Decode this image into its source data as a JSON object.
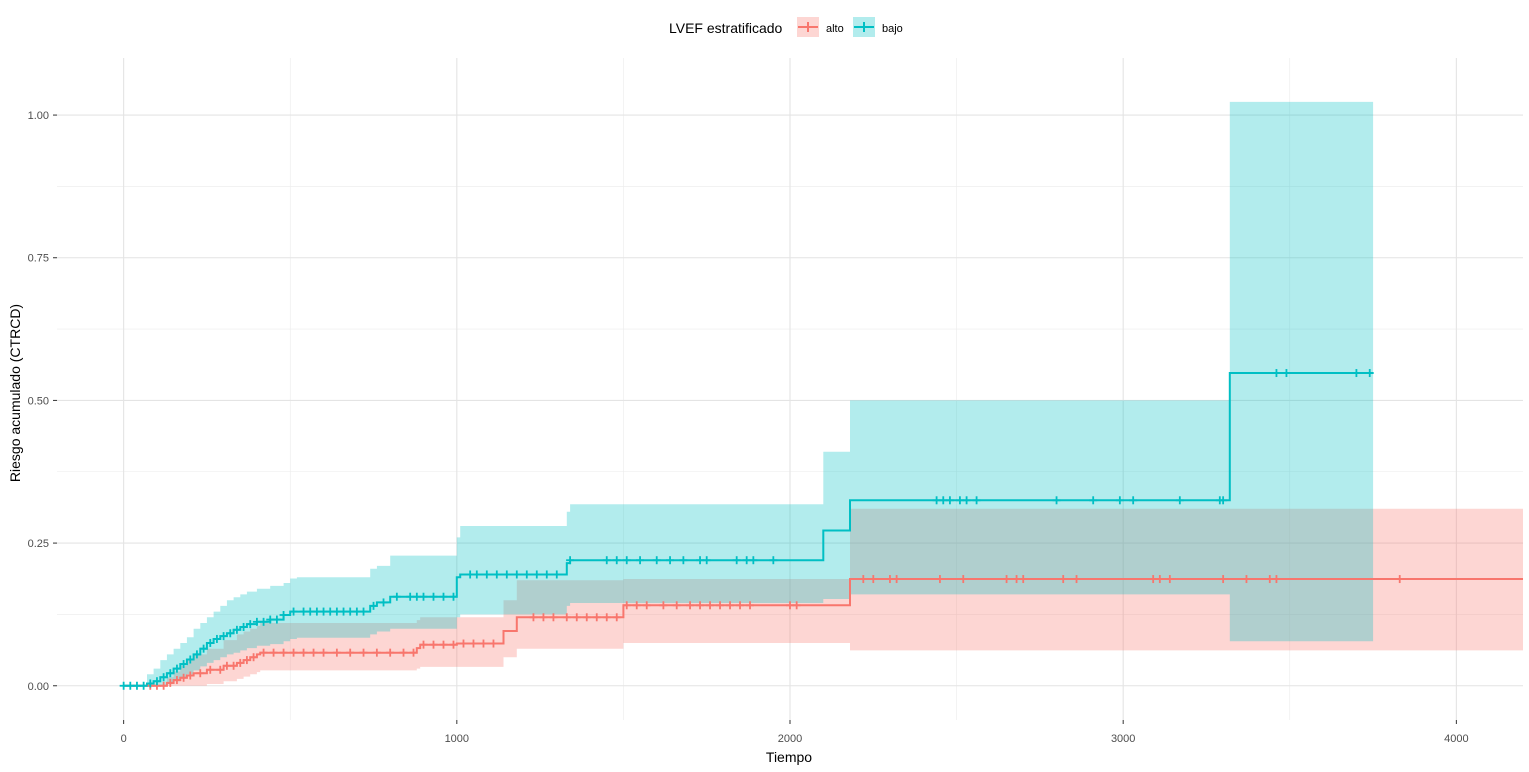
{
  "chart_data": {
    "type": "line",
    "step": true,
    "xlabel": "Tiempo",
    "ylabel": "Riesgo acumulado (CTRCD)",
    "xlim": [
      -200,
      4200
    ],
    "ylim": [
      -0.06,
      1.1
    ],
    "x_ticks": [
      0,
      1000,
      2000,
      3000,
      4000
    ],
    "x_tick_labels": [
      "0",
      "1000",
      "2000",
      "3000",
      "4000"
    ],
    "y_ticks": [
      0,
      0.25,
      0.5,
      0.75,
      1.0
    ],
    "y_tick_labels": [
      "0.00",
      "0.25",
      "0.50",
      "0.75",
      "1.00"
    ],
    "grid": true,
    "legend": {
      "title": "LVEF estratificado",
      "position": "top",
      "entries": [
        "alto",
        "bajo"
      ]
    },
    "series": [
      {
        "name": "alto",
        "color": "#F8766D",
        "fill": "#F8766D",
        "x": [
          0,
          130,
          150,
          170,
          190,
          210,
          250,
          300,
          340,
          360,
          380,
          400,
          410,
          880,
          890,
          1000,
          1140,
          1180,
          1500,
          2180,
          4200
        ],
        "y": [
          0,
          0.005,
          0.01,
          0.014,
          0.018,
          0.022,
          0.028,
          0.035,
          0.04,
          0.045,
          0.05,
          0.055,
          0.058,
          0.066,
          0.072,
          0.074,
          0.096,
          0.12,
          0.141,
          0.187,
          0.187
        ],
        "upper": [
          0,
          0.015,
          0.025,
          0.035,
          0.045,
          0.055,
          0.065,
          0.08,
          0.09,
          0.095,
          0.1,
          0.105,
          0.11,
          0.115,
          0.12,
          0.12,
          0.15,
          0.185,
          0.187,
          0.31,
          0.31
        ],
        "lower": [
          0,
          0,
          0,
          0,
          0,
          0,
          0.003,
          0.008,
          0.012,
          0.016,
          0.02,
          0.024,
          0.027,
          0.03,
          0.033,
          0.033,
          0.05,
          0.065,
          0.075,
          0.062,
          0.065
        ],
        "censor_x": [
          80,
          100,
          120,
          140,
          160,
          180,
          200,
          230,
          260,
          290,
          310,
          330,
          350,
          370,
          390,
          420,
          450,
          480,
          510,
          540,
          570,
          600,
          640,
          680,
          720,
          760,
          800,
          840,
          870,
          900,
          930,
          960,
          990,
          1020,
          1050,
          1080,
          1110,
          1230,
          1260,
          1290,
          1330,
          1360,
          1390,
          1420,
          1450,
          1480,
          1510,
          1540,
          1570,
          1620,
          1660,
          1700,
          1730,
          1760,
          1790,
          1820,
          1850,
          1880,
          2000,
          2020,
          2220,
          2250,
          2300,
          2320,
          2450,
          2520,
          2650,
          2680,
          2700,
          2820,
          2860,
          3090,
          3110,
          3140,
          3300,
          3370,
          3440,
          3460,
          3830
        ]
      },
      {
        "name": "bajo",
        "color": "#00BFC4",
        "fill": "#00BFC4",
        "x": [
          0,
          70,
          90,
          110,
          130,
          150,
          170,
          190,
          210,
          230,
          250,
          270,
          290,
          310,
          330,
          350,
          370,
          400,
          440,
          480,
          500,
          520,
          740,
          760,
          800,
          1000,
          1010,
          1330,
          1340,
          2100,
          2180,
          3320,
          3750
        ],
        "y": [
          0,
          0.004,
          0.008,
          0.015,
          0.022,
          0.03,
          0.038,
          0.046,
          0.055,
          0.065,
          0.075,
          0.082,
          0.087,
          0.092,
          0.098,
          0.103,
          0.108,
          0.112,
          0.116,
          0.124,
          0.13,
          0.13,
          0.14,
          0.146,
          0.156,
          0.19,
          0.195,
          0.215,
          0.22,
          0.272,
          0.325,
          0.548,
          0.548
        ],
        "upper": [
          0,
          0.02,
          0.03,
          0.045,
          0.055,
          0.065,
          0.075,
          0.085,
          0.1,
          0.11,
          0.12,
          0.13,
          0.14,
          0.15,
          0.155,
          0.16,
          0.165,
          0.17,
          0.175,
          0.18,
          0.188,
          0.19,
          0.205,
          0.21,
          0.228,
          0.26,
          0.28,
          0.305,
          0.318,
          0.41,
          0.5,
          1.023,
          1.023
        ],
        "lower": [
          0,
          0,
          0,
          0,
          0.003,
          0.008,
          0.014,
          0.02,
          0.027,
          0.034,
          0.04,
          0.045,
          0.05,
          0.055,
          0.058,
          0.062,
          0.066,
          0.07,
          0.073,
          0.078,
          0.082,
          0.084,
          0.09,
          0.095,
          0.1,
          0.12,
          0.125,
          0.14,
          0.145,
          0.152,
          0.16,
          0.078,
          0.078
        ],
        "censor_x": [
          0,
          20,
          40,
          60,
          80,
          100,
          120,
          140,
          160,
          180,
          200,
          220,
          240,
          260,
          280,
          300,
          320,
          340,
          360,
          380,
          400,
          420,
          440,
          460,
          480,
          510,
          540,
          560,
          580,
          600,
          620,
          640,
          660,
          680,
          700,
          720,
          750,
          780,
          820,
          860,
          880,
          900,
          930,
          960,
          990,
          1040,
          1060,
          1090,
          1120,
          1150,
          1180,
          1210,
          1240,
          1270,
          1300,
          1340,
          1450,
          1480,
          1510,
          1550,
          1600,
          1640,
          1680,
          1730,
          1750,
          1840,
          1870,
          1890,
          1950,
          2440,
          2460,
          2480,
          2510,
          2530,
          2560,
          2800,
          2910,
          2990,
          3030,
          3170,
          3290,
          3300,
          3460,
          3490,
          3700,
          3740
        ]
      }
    ]
  }
}
